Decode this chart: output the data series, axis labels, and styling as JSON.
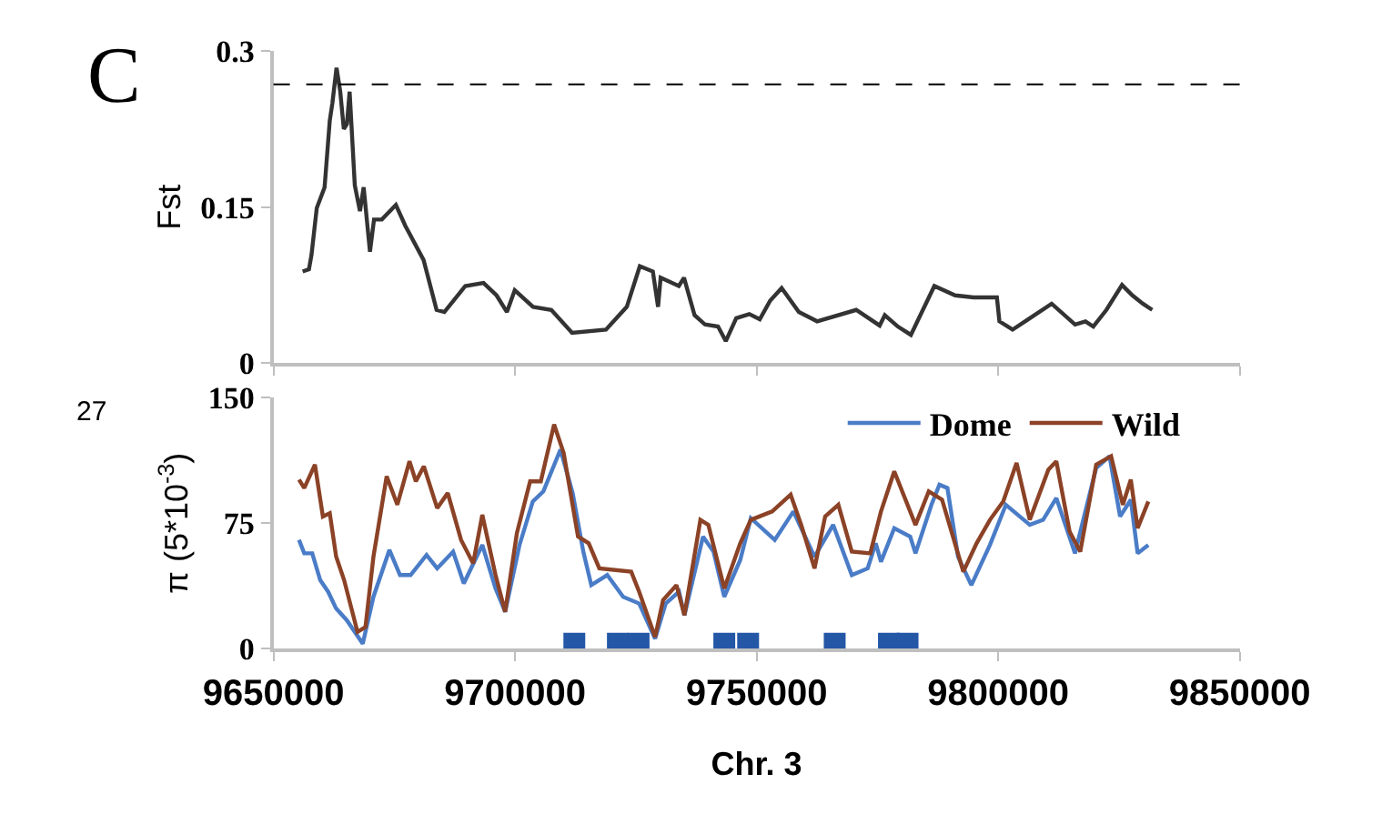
{
  "chart_data": [
    {
      "type": "line",
      "ylabel": "Fst",
      "annotations": [
        "C"
      ],
      "xlim": [
        9650000,
        9850000
      ],
      "xticks": [
        9650000,
        9700000,
        9750000,
        9800000,
        9850000
      ],
      "ylim": [
        0,
        0.3
      ],
      "yticks": [
        0,
        0.15,
        0.3
      ],
      "tick_labels": "y",
      "marker": "none",
      "ref_lines": [
        {
          "axis": "y",
          "value": 0.268,
          "color": "#000000",
          "line_style": "dashed"
        }
      ],
      "series": [
        {
          "color": "#333333",
          "x": [
            9656040,
            9657340,
            9657870,
            9658960,
            9660580,
            9661650,
            9662200,
            9663050,
            9663820,
            9664560,
            9665210,
            9665760,
            9666830,
            9667900,
            9668670,
            9669970,
            9670810,
            9672430,
            9675340,
            9677280,
            9681070,
            9683760,
            9685370,
            9689700,
            9693470,
            9696170,
            9698320,
            9699940,
            9703720,
            9707510,
            9711810,
            9718820,
            9723130,
            9725820,
            9728520,
            9729600,
            9730130,
            9733900,
            9734970,
            9737150,
            9739310,
            9742010,
            9743620,
            9745780,
            9748480,
            9750650,
            9752810,
            9755180,
            9758730,
            9762520,
            9770610,
            9775460,
            9776530,
            9779230,
            9781930,
            9786780,
            9791090,
            9794870,
            9799730,
            9800250,
            9802970,
            9806200,
            9811060,
            9815910,
            9818060,
            9819680,
            9822390,
            9825630,
            9827780,
            9829940,
            9831880
          ],
          "values": [
            0.088,
            0.09,
            0.104,
            0.149,
            0.169,
            0.233,
            0.25,
            0.284,
            0.261,
            0.225,
            0.23,
            0.261,
            0.171,
            0.146,
            0.169,
            0.107,
            0.138,
            0.138,
            0.152,
            0.132,
            0.099,
            0.051,
            0.049,
            0.074,
            0.077,
            0.065,
            0.049,
            0.07,
            0.054,
            0.051,
            0.029,
            0.032,
            0.054,
            0.093,
            0.088,
            0.054,
            0.082,
            0.074,
            0.082,
            0.046,
            0.037,
            0.035,
            0.021,
            0.043,
            0.047,
            0.042,
            0.06,
            0.072,
            0.049,
            0.04,
            0.051,
            0.036,
            0.046,
            0.035,
            0.027,
            0.074,
            0.065,
            0.063,
            0.063,
            0.04,
            0.032,
            0.042,
            0.057,
            0.037,
            0.04,
            0.035,
            0.051,
            0.075,
            0.065,
            0.057,
            0.051
          ]
        }
      ]
    },
    {
      "type": "line",
      "xlabel": "Chr. 3",
      "ylabel": "π (5*10$^{-3}$)",
      "annotations": [
        "27"
      ],
      "xlim": [
        9650000,
        9850000
      ],
      "xticks": [
        9650000,
        9700000,
        9750000,
        9800000,
        9850000
      ],
      "ylim": [
        0,
        150
      ],
      "yticks": [
        0,
        75,
        150
      ],
      "legend": "top right",
      "marker": "none",
      "series": [
        {
          "name": "Dome",
          "color": "#4a7cc7",
          "x": [
            9655280,
            9656370,
            9658020,
            9659670,
            9661320,
            9662970,
            9665180,
            9668480,
            9670690,
            9673990,
            9676190,
            9678380,
            9681680,
            9683880,
            9687180,
            9689390,
            9693220,
            9695960,
            9697950,
            9700920,
            9703670,
            9705860,
            9709400,
            9711930,
            9714130,
            9715780,
            9719080,
            9722380,
            9725690,
            9728990,
            9731180,
            9733940,
            9735060,
            9738900,
            9741080,
            9743310,
            9746610,
            9748800,
            9753750,
            9757610,
            9760360,
            9761980,
            9765830,
            9769700,
            9772990,
            9774650,
            9775740,
            9778490,
            9781790,
            9782880,
            9786180,
            9787840,
            9789490,
            9791690,
            9794440,
            9798290,
            9801590,
            9806540,
            9809300,
            9812030,
            9815890,
            9820280,
            9823040,
            9825230,
            9827440,
            9828860,
            9831070
          ],
          "values": [
            65,
            57,
            57,
            41,
            34,
            24,
            17,
            3,
            31,
            59,
            44,
            44,
            56,
            48,
            58,
            39,
            62,
            36,
            22,
            62,
            88,
            94,
            119,
            93,
            58,
            38,
            44,
            31,
            27,
            6,
            27,
            34,
            20,
            67,
            58,
            31,
            53,
            78,
            65,
            82,
            65,
            55,
            74,
            44,
            48,
            63,
            52,
            72,
            67,
            57,
            86,
            98,
            96,
            55,
            38,
            62,
            86,
            74,
            77,
            90,
            57,
            108,
            115,
            79,
            89,
            57,
            62
          ]
        },
        {
          "name": "Wild",
          "color": "#8b4226",
          "x": [
            9655280,
            9656370,
            9658580,
            9660230,
            9661650,
            9662970,
            9664620,
            9667390,
            9669040,
            9670690,
            9673430,
            9675640,
            9678150,
            9679470,
            9681120,
            9683880,
            9686070,
            9688830,
            9691330,
            9693220,
            9695960,
            9697950,
            9700380,
            9703120,
            9705330,
            9708080,
            9710060,
            9713030,
            9715240,
            9717440,
            9724040,
            9725690,
            9728990,
            9730640,
            9733410,
            9735060,
            9738360,
            9740010,
            9743310,
            9746610,
            9748800,
            9753210,
            9757040,
            9759230,
            9761980,
            9764180,
            9766920,
            9769700,
            9773530,
            9775740,
            9778490,
            9782880,
            9785630,
            9788380,
            9792780,
            9795530,
            9798290,
            9801050,
            9803800,
            9806540,
            9810380,
            9812030,
            9814780,
            9816980,
            9820280,
            9823370,
            9825790,
            9827440,
            9828860,
            9831070
          ],
          "values": [
            101,
            96,
            110,
            79,
            81,
            55,
            41,
            10,
            13,
            55,
            103,
            86,
            112,
            100,
            109,
            84,
            93,
            65,
            51,
            80,
            44,
            22,
            69,
            100,
            100,
            134,
            117,
            67,
            63,
            48,
            46,
            34,
            7,
            29,
            38,
            20,
            77,
            74,
            36,
            63,
            77,
            82,
            92,
            74,
            48,
            79,
            86,
            58,
            57,
            82,
            106,
            74,
            94,
            89,
            46,
            63,
            77,
            88,
            111,
            77,
            107,
            112,
            70,
            58,
            110,
            115,
            86,
            101,
            72,
            88
          ]
        },
        {
          "type": "scatter",
          "marker": "square",
          "color": "#2457a6",
          "x": [
            9712270,
            9721280,
            9725570,
            9743310,
            9748240,
            9766160,
            9777380,
            9781240
          ],
          "values": [
            3,
            3,
            3,
            3,
            3,
            3,
            3,
            3
          ]
        }
      ]
    }
  ]
}
